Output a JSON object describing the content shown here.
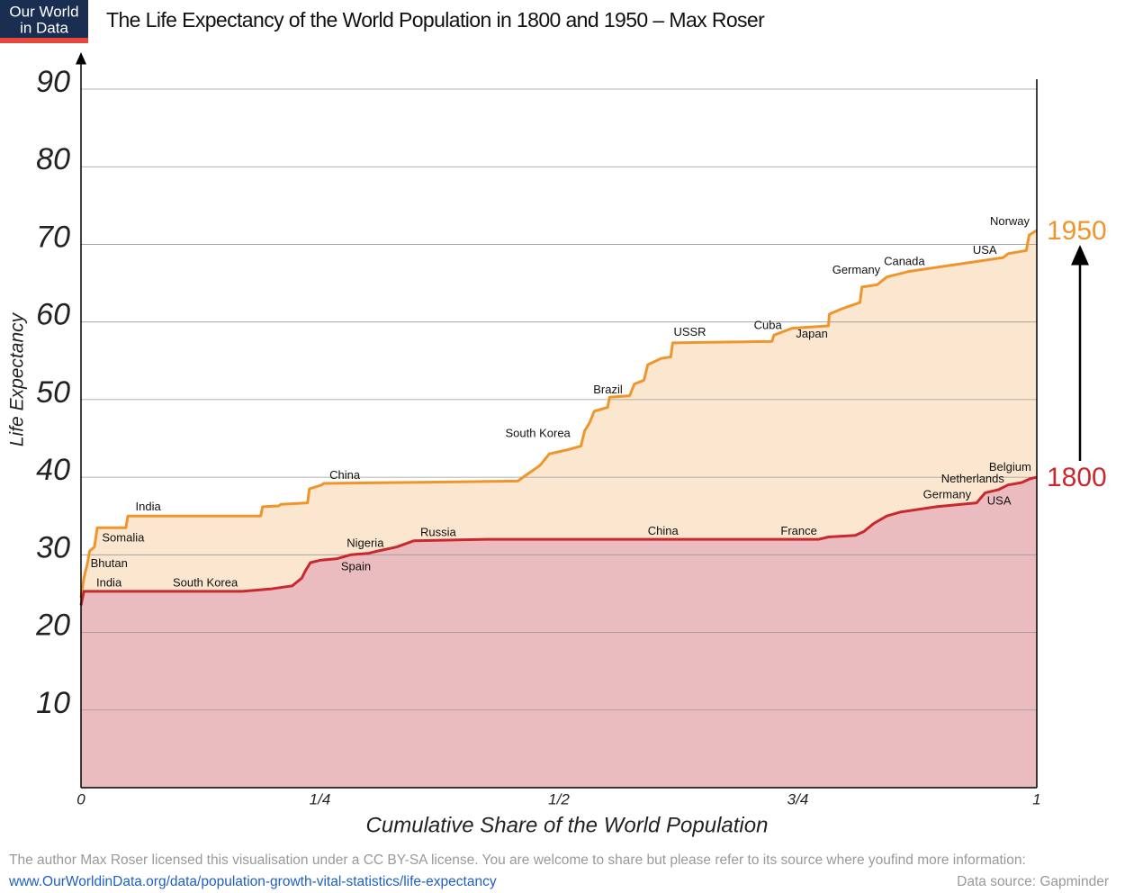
{
  "logo": {
    "line1": "Our World",
    "line2": "in Data"
  },
  "chart_data": {
    "type": "line",
    "title": "The Life Expectancy of the World Population in 1800 and 1950 – Max Roser",
    "xlabel": "Cumulative Share of the World Population",
    "ylabel": "Life Expectancy",
    "xlim": [
      0,
      1
    ],
    "ylim": [
      0,
      90
    ],
    "xticks": [
      0,
      {
        "value": 0.25,
        "label": "1/4"
      },
      {
        "value": 0.5,
        "label": "1/2"
      },
      {
        "value": 0.75,
        "label": "3/4"
      },
      1
    ],
    "yticks": [
      10,
      20,
      30,
      40,
      50,
      60,
      70,
      80,
      90
    ],
    "grid": true,
    "series": [
      {
        "name": "1950",
        "color": "#f0952b",
        "fill": "#fbe7d0",
        "x": [
          0,
          0.003,
          0.007,
          0.009,
          0.014,
          0.017,
          0.047,
          0.049,
          0.188,
          0.19,
          0.207,
          0.209,
          0.237,
          0.239,
          0.252,
          0.254,
          0.457,
          0.466,
          0.48,
          0.49,
          0.508,
          0.523,
          0.527,
          0.532,
          0.537,
          0.551,
          0.553,
          0.574,
          0.579,
          0.589,
          0.593,
          0.607,
          0.617,
          0.619,
          0.723,
          0.725,
          0.744,
          0.782,
          0.783,
          0.796,
          0.815,
          0.817,
          0.833,
          0.843,
          0.866,
          0.904,
          0.965,
          0.97,
          0.989,
          0.992,
          1
        ],
        "values": [
          24.5,
          27,
          29,
          30.5,
          31,
          33.5,
          33.5,
          35,
          35,
          36.2,
          36.3,
          36.5,
          36.7,
          38.5,
          39,
          39.2,
          39.5,
          40.3,
          41.5,
          43,
          43.5,
          44,
          46,
          47,
          48.5,
          49,
          50.3,
          50.5,
          52,
          52.5,
          54.5,
          55.3,
          55.5,
          57.3,
          57.5,
          58.3,
          59.2,
          59.5,
          61,
          61.7,
          62.5,
          64.5,
          64.8,
          65.8,
          66.5,
          67.2,
          68.3,
          68.8,
          69.2,
          71.2,
          71.8
        ]
      },
      {
        "name": "1800",
        "color": "#c8282e",
        "fill": "#ebbcbf",
        "x": [
          0,
          0.003,
          0.169,
          0.198,
          0.221,
          0.231,
          0.235,
          0.24,
          0.25,
          0.268,
          0.282,
          0.301,
          0.311,
          0.33,
          0.348,
          0.424,
          0.574,
          0.772,
          0.782,
          0.81,
          0.819,
          0.829,
          0.843,
          0.857,
          0.895,
          0.937,
          0.946,
          0.96,
          0.97,
          0.984,
          0.993,
          1
        ],
        "values": [
          23.5,
          25.3,
          25.3,
          25.6,
          26,
          27,
          28,
          29,
          29.3,
          29.5,
          30,
          30.2,
          30.5,
          31,
          31.8,
          32,
          32,
          32,
          32.3,
          32.5,
          33,
          34,
          35,
          35.5,
          36.2,
          36.7,
          38,
          38.4,
          39,
          39.3,
          39.8,
          40
        ]
      }
    ],
    "annotations": [
      {
        "text": "India",
        "x": 0.057,
        "y": 36.1
      },
      {
        "text": "Somalia",
        "x": 0.022,
        "y": 32.1
      },
      {
        "text": "Bhutan",
        "x": 0.01,
        "y": 28.8
      },
      {
        "text": "India",
        "x": 0.016,
        "y": 26.3
      },
      {
        "text": "South Korea",
        "x": 0.096,
        "y": 26.3
      },
      {
        "text": "China",
        "x": 0.26,
        "y": 40.2
      },
      {
        "text": "Nigeria",
        "x": 0.278,
        "y": 31.4
      },
      {
        "text": "Spain",
        "x": 0.272,
        "y": 28.4
      },
      {
        "text": "Russia",
        "x": 0.355,
        "y": 32.8
      },
      {
        "text": "China",
        "x": 0.593,
        "y": 33.0
      },
      {
        "text": "France",
        "x": 0.732,
        "y": 33.0
      },
      {
        "text": "South Korea",
        "x": 0.444,
        "y": 45.6
      },
      {
        "text": "Brazil",
        "x": 0.536,
        "y": 51.2
      },
      {
        "text": "USSR",
        "x": 0.62,
        "y": 58.6
      },
      {
        "text": "Cuba",
        "x": 0.704,
        "y": 59.5
      },
      {
        "text": "Japan",
        "x": 0.748,
        "y": 58.4
      },
      {
        "text": "Germany",
        "x": 0.786,
        "y": 66.6
      },
      {
        "text": "Canada",
        "x": 0.84,
        "y": 67.7
      },
      {
        "text": "USA",
        "x": 0.933,
        "y": 69.2
      },
      {
        "text": "Norway",
        "x": 0.951,
        "y": 72.9
      },
      {
        "text": "Belgium",
        "x": 0.95,
        "y": 41.2
      },
      {
        "text": "Netherlands",
        "x": 0.9,
        "y": 39.7
      },
      {
        "text": "Germany",
        "x": 0.881,
        "y": 37.7
      },
      {
        "text": "USA",
        "x": 0.948,
        "y": 36.9
      }
    ]
  },
  "footer": {
    "license": "The author Max Roser licensed this visualisation under a CC BY-SA license. You are welcome to share but please refer to its source where youfind more information:",
    "url": "www.OurWorldinData.org/data/population-growth-vital-statistics/life-expectancy",
    "source": "Data source: Gapminder"
  }
}
